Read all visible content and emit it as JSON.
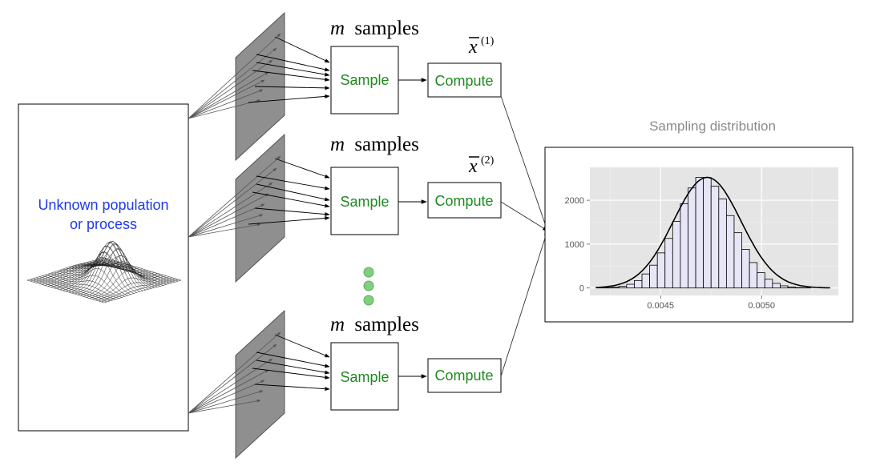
{
  "population": {
    "label_line1": "Unknown population",
    "label_line2": "or process"
  },
  "rows": [
    {
      "samples_var": "m",
      "samples_word": "samples",
      "sample_label": "Sample",
      "compute_label": "Compute",
      "stat_base": "x",
      "stat_superscript": "(1)"
    },
    {
      "samples_var": "m",
      "samples_word": "samples",
      "sample_label": "Sample",
      "compute_label": "Compute",
      "stat_base": "x",
      "stat_superscript": "(2)"
    },
    {
      "samples_var": "m",
      "samples_word": "samples",
      "sample_label": "Sample",
      "compute_label": "Compute",
      "stat_base": "",
      "stat_superscript": ""
    }
  ],
  "colors": {
    "population_text": "#1e3ae8",
    "box_text": "#1f8a1f",
    "ellipsis_dots": "#7fcf7f",
    "panel": "#8f8f8f",
    "chart_panel": "#e5e5e5",
    "bar_fill": "#e6e6f7",
    "title_gray": "#8a8a8a"
  },
  "chart_data": {
    "type": "bar",
    "title": "Sampling distribution",
    "xlabel": "",
    "ylabel": "",
    "xlim": [
      0.00415,
      0.00538
    ],
    "ylim": [
      -170,
      2750
    ],
    "x_ticks": [
      0.0045,
      0.005
    ],
    "x_tick_labels": [
      "0.0045",
      "0.0050"
    ],
    "y_ticks": [
      0,
      1000,
      2000
    ],
    "y_tick_labels": [
      "0",
      "1000",
      "2000"
    ],
    "grid": true,
    "bins": {
      "start": 0.00418,
      "width": 3.8e-05,
      "counts": [
        3,
        8,
        18,
        40,
        85,
        170,
        320,
        520,
        800,
        1130,
        1520,
        1920,
        2280,
        2520,
        2520,
        2320,
        2030,
        1650,
        1260,
        880,
        580,
        350,
        200,
        105,
        50,
        22,
        9,
        4
      ]
    },
    "density_curve": {
      "mean": 0.004731,
      "sd": 0.000167,
      "peak": 2520
    }
  }
}
